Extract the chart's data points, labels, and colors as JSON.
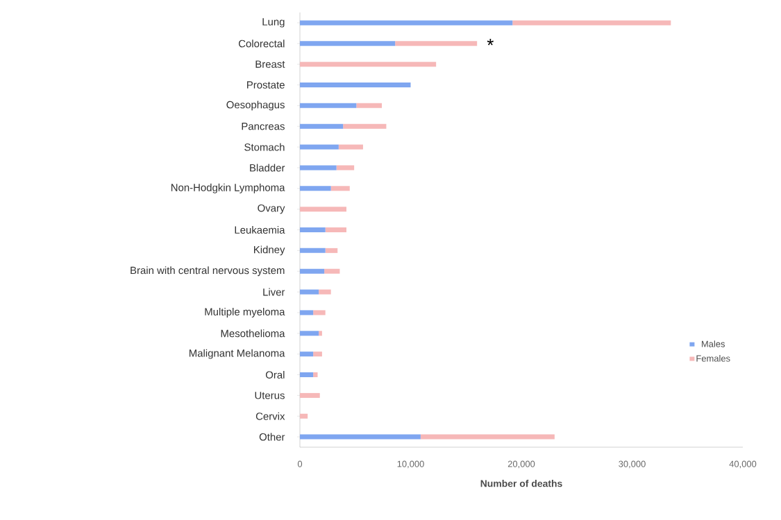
{
  "chart_data": {
    "type": "bar",
    "orientation": "horizontal",
    "stacked": true,
    "categories": [
      "Lung",
      "Colorectal",
      "Breast",
      "Prostate",
      "Oesophagus",
      "Pancreas",
      "Stomach",
      "Bladder",
      "Non-Hodgkin Lymphoma",
      "Ovary",
      "Leukaemia",
      "Kidney",
      "Brain with central nervous system",
      "Liver",
      "Multiple myeloma",
      "Mesothelioma",
      "Malignant Melanoma",
      "Oral",
      "Uterus",
      "Cervix",
      "Other"
    ],
    "series": [
      {
        "name": "Males",
        "color": "#7fa6f0",
        "values": [
          19200,
          8600,
          null,
          10000,
          5100,
          3900,
          3500,
          3300,
          2800,
          null,
          2300,
          2300,
          2200,
          1700,
          1200,
          1700,
          1200,
          1200,
          null,
          null,
          10900
        ]
      },
      {
        "name": "Females",
        "color": "#f6b8b8",
        "values": [
          14300,
          7400,
          12300,
          null,
          2300,
          3900,
          2200,
          1600,
          1700,
          4200,
          1900,
          1100,
          1400,
          1100,
          1100,
          300,
          800,
          400,
          1800,
          700,
          12100
        ]
      }
    ],
    "xlim": [
      0,
      40000
    ],
    "xticks": [
      0,
      {
        "value": 10000,
        "label": "10,000"
      },
      {
        "value": 20000,
        "label": "20,000"
      },
      {
        "value": 30000,
        "label": "30,000"
      },
      {
        "value": 40000,
        "label": "40,000"
      }
    ],
    "xlabel": "Number of deaths",
    "legend": "right",
    "annotations": [
      "*"
    ]
  }
}
